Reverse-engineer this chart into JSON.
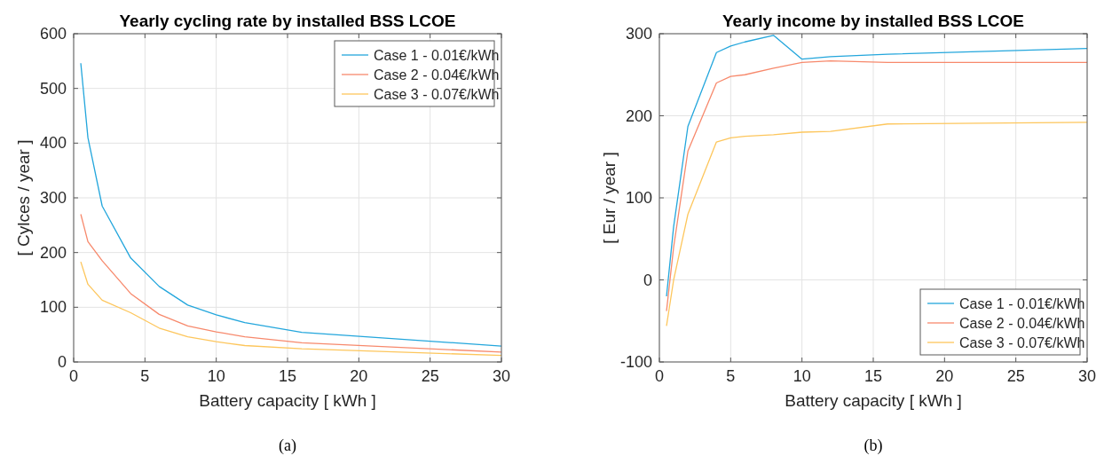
{
  "chart_data": [
    {
      "type": "line",
      "title": "Yearly cycling rate by installed BSS LCOE",
      "xlabel": "Battery capacity [ kWh ]",
      "ylabel": "[ Cylces / year ]",
      "annotations": [
        "(a)"
      ],
      "x": [
        0.5,
        1,
        2,
        4,
        6,
        8,
        10,
        12,
        16,
        30
      ],
      "xlim": [
        0,
        30
      ],
      "xticks": [
        0,
        5,
        10,
        15,
        20,
        25,
        30
      ],
      "ylim": [
        0,
        600
      ],
      "yticks": [
        0,
        100,
        200,
        300,
        400,
        500,
        600
      ],
      "grid": true,
      "legend": "top right",
      "series": [
        {
          "name": "Case 1 - 0.01€/kWh",
          "color": "#23a6dc",
          "values": [
            546,
            410,
            285,
            190,
            138,
            104,
            86,
            72,
            54,
            29
          ]
        },
        {
          "name": "Case 2 - 0.04€/kWh",
          "color": "#f7896c",
          "values": [
            270,
            220,
            185,
            125,
            87,
            66,
            55,
            46,
            35,
            18
          ]
        },
        {
          "name": "Case 3 - 0.07€/kWh",
          "color": "#fdc65c",
          "values": [
            183,
            142,
            113,
            90,
            62,
            46,
            37,
            30,
            24,
            12
          ]
        }
      ]
    },
    {
      "type": "line",
      "title": "Yearly income by installed BSS LCOE",
      "xlabel": "Battery capacity [ kWh ]",
      "ylabel": "[ Eur / year ]",
      "annotations": [
        "(b)"
      ],
      "x": [
        0.5,
        1,
        2,
        4,
        5,
        6,
        8,
        10,
        12,
        16,
        30
      ],
      "xlim": [
        0,
        30
      ],
      "xticks": [
        0,
        5,
        10,
        15,
        20,
        25,
        30
      ],
      "ylim": [
        -100,
        300
      ],
      "yticks": [
        -100,
        0,
        100,
        200,
        300
      ],
      "grid": true,
      "legend": "bottom right",
      "series": [
        {
          "name": "Case 1 - 0.01€/kWh",
          "color": "#23a6dc",
          "values": [
            -20,
            65,
            187,
            277,
            285,
            290,
            298,
            269,
            272,
            275,
            282
          ]
        },
        {
          "name": "Case 2 - 0.04€/kWh",
          "color": "#f7896c",
          "values": [
            -38,
            40,
            157,
            240,
            248,
            250,
            258,
            265,
            267,
            265,
            265
          ]
        },
        {
          "name": "Case 3 - 0.07€/kWh",
          "color": "#fdc65c",
          "values": [
            -56,
            0,
            80,
            168,
            173,
            175,
            177,
            180,
            181,
            190,
            192
          ]
        }
      ]
    }
  ]
}
